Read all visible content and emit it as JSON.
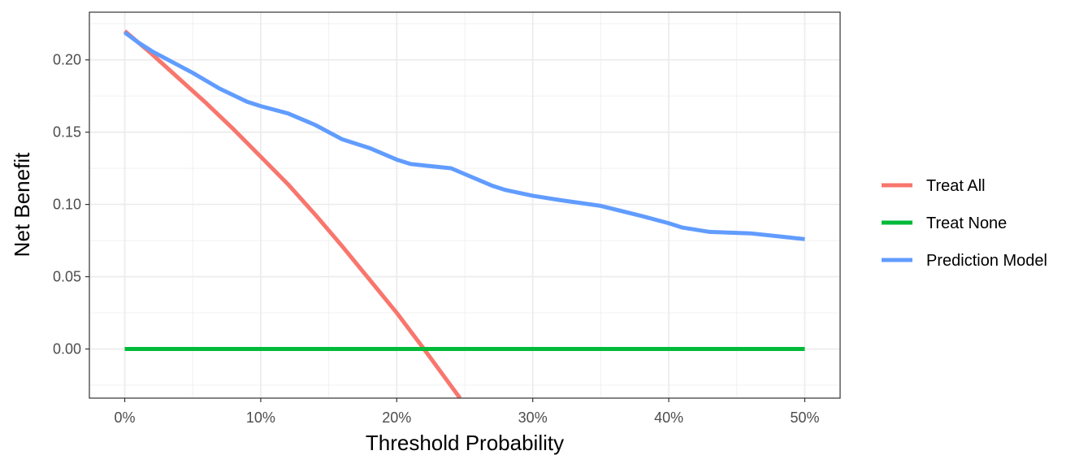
{
  "chart_data": {
    "type": "line",
    "xlabel": "Threshold Probability",
    "ylabel": "Net Benefit",
    "xlim": [
      -0.026,
      0.526
    ],
    "ylim": [
      -0.034,
      0.233
    ],
    "x_ticks": [
      0,
      0.1,
      0.2,
      0.3,
      0.4,
      0.5
    ],
    "x_tick_labels": [
      "0%",
      "10%",
      "20%",
      "30%",
      "40%",
      "50%"
    ],
    "y_ticks": [
      0.0,
      0.05,
      0.1,
      0.15,
      0.2
    ],
    "y_tick_labels": [
      "0.00",
      "0.05",
      "0.10",
      "0.15",
      "0.20"
    ],
    "grid": true,
    "legend_position": "right",
    "series": [
      {
        "name": "Treat All",
        "color": "#F8766D",
        "x": [
          0,
          0.02,
          0.04,
          0.06,
          0.08,
          0.1,
          0.12,
          0.14,
          0.16,
          0.18,
          0.2,
          0.22,
          0.2465
        ],
        "y": [
          0.22,
          0.204,
          0.187,
          0.17,
          0.152,
          0.133,
          0.114,
          0.093,
          0.071,
          0.048,
          0.025,
          0.0,
          -0.034
        ]
      },
      {
        "name": "Treat None",
        "color": "#00BA38",
        "x": [
          0,
          0.5
        ],
        "y": [
          0,
          0
        ]
      },
      {
        "name": "Prediction Model",
        "color": "#619CFF",
        "x": [
          0,
          0.01,
          0.02,
          0.03,
          0.05,
          0.07,
          0.09,
          0.1,
          0.12,
          0.14,
          0.16,
          0.18,
          0.2,
          0.21,
          0.22,
          0.24,
          0.25,
          0.27,
          0.28,
          0.3,
          0.32,
          0.35,
          0.38,
          0.4,
          0.41,
          0.43,
          0.46,
          0.48,
          0.5
        ],
        "y": [
          0.219,
          0.212,
          0.206,
          0.201,
          0.191,
          0.18,
          0.171,
          0.168,
          0.163,
          0.155,
          0.145,
          0.139,
          0.131,
          0.128,
          0.127,
          0.125,
          0.121,
          0.113,
          0.11,
          0.106,
          0.103,
          0.099,
          0.092,
          0.087,
          0.084,
          0.081,
          0.08,
          0.078,
          0.076
        ]
      }
    ]
  }
}
